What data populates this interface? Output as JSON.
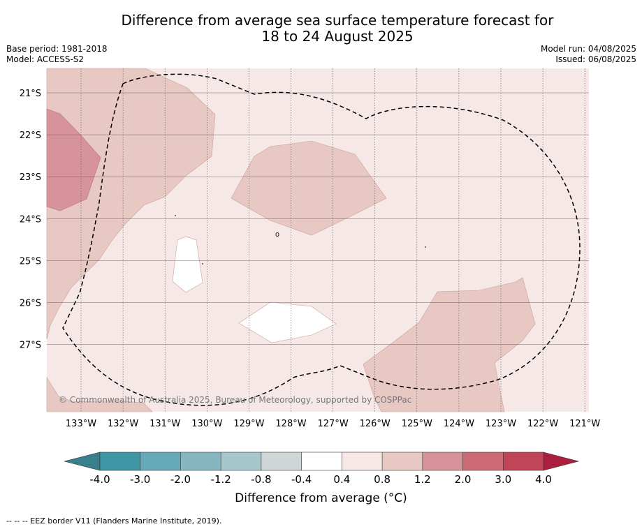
{
  "title": {
    "line1": "Difference from average sea surface temperature forecast for",
    "line2": "18 to 24 August 2025"
  },
  "meta": {
    "base_period": "Base period: 1981-2018",
    "model": "Model: ACCESS-S2",
    "model_run": "Model run: 04/08/2025",
    "issued": "Issued: 06/08/2025"
  },
  "map": {
    "longitudes": [
      "133°W",
      "132°W",
      "131°W",
      "130°W",
      "129°W",
      "128°W",
      "127°W",
      "126°W",
      "125°W",
      "124°W",
      "123°W",
      "122°W",
      "121°W"
    ],
    "latitudes": [
      "21°S",
      "22°S",
      "23°S",
      "24°S",
      "25°S",
      "26°S",
      "27°S"
    ],
    "copyright": "© Commonwealth of Australia 2025, Bureau of Meteorology, supported by COSPPac",
    "background_color": "#f5e8e6",
    "anomaly_colors": {
      "range_0_4_0_8": "#f5e8e6",
      "range_0_8_1_2": "#e8c8c3",
      "range_1_2_2_0": "#d69399",
      "range_neg0_4_0_4": "#ffffff"
    }
  },
  "colorbar": {
    "ticks": [
      "-4.0",
      "-3.0",
      "-2.0",
      "-1.2",
      "-0.8",
      "-0.4",
      "0.4",
      "0.8",
      "1.2",
      "2.0",
      "3.0",
      "4.0"
    ],
    "colors": [
      "#3f96a5",
      "#66a9b8",
      "#87b6c3",
      "#a6c8cd",
      "#d0d6d8",
      "#ffffff",
      "#f5e8e6",
      "#e8c8c3",
      "#d69399",
      "#cd6b75",
      "#c04657"
    ],
    "low_extend_color": "#3a7f8e",
    "high_extend_color": "#ad1f3f",
    "label": "Difference from average (°C)"
  },
  "footer": "--  --  -- EEZ border V11 (Flanders Marine Institute, 2019)."
}
